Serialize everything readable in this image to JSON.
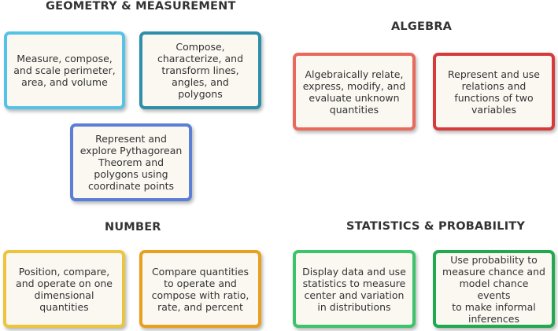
{
  "sections": {
    "geometry": {
      "title": "GEOMETRY & MEASUREMENT",
      "cards": [
        {
          "text": "Measure, compose,\nand scale perimeter,\narea, and volume",
          "color": "#55c3e8"
        },
        {
          "text": "Compose,\ncharacterize, and\ntransform lines,\nangles, and polygons",
          "color": "#2e8fa8"
        },
        {
          "text": "Represent and\nexplore Pythagorean\nTheorem and\npolygons using\ncoordinate points",
          "color": "#5b7fd6"
        }
      ]
    },
    "algebra": {
      "title": "ALGEBRA",
      "cards": [
        {
          "text": "Algebraically relate,\nexpress, modify, and\nevaluate unknown\nquantities",
          "color": "#e9695a"
        },
        {
          "text": "Represent and use\nrelations and\nfunctions of two\nvariables",
          "color": "#d63a3a"
        }
      ]
    },
    "number": {
      "title": "NUMBER",
      "cards": [
        {
          "text": "Position, compare,\nand operate on one\ndimensional\nquantities",
          "color": "#edc53c"
        },
        {
          "text": "Compare quantities\nto operate and\ncompose with ratio,\nrate, and percent",
          "color": "#e8a020"
        }
      ]
    },
    "statistics": {
      "title": "STATISTICS & PROBABILITY",
      "cards": [
        {
          "text": "Display data and use\nstatistics to measure\ncenter and variation\nin distributions",
          "color": "#3cc46a"
        },
        {
          "text": "Use probability to\nmeasure chance and\nmodel chance events\nto make informal\ninferences",
          "color": "#22a84e"
        }
      ]
    }
  }
}
